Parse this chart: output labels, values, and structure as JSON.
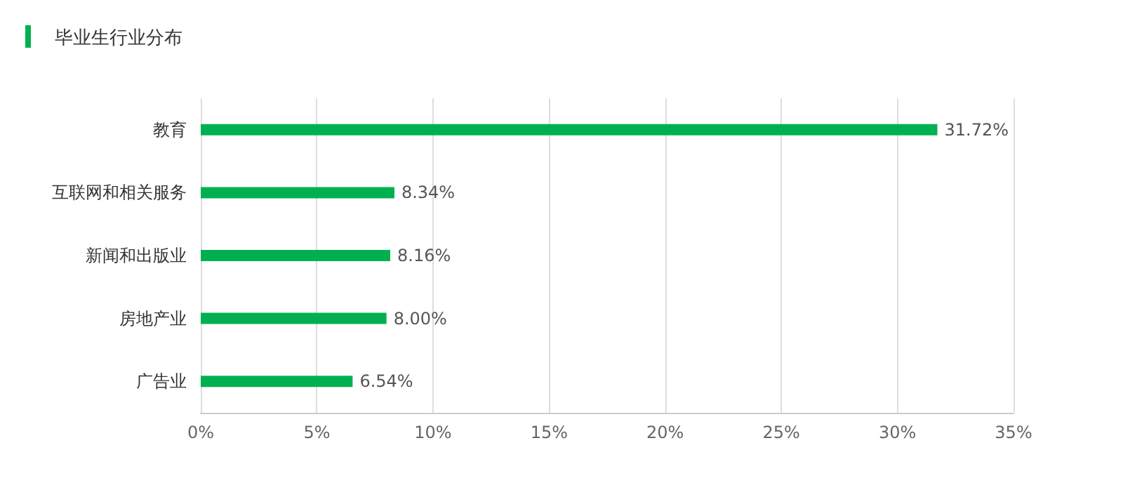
{
  "chart_data": {
    "type": "bar",
    "title": "毕业生行业分布",
    "orientation": "horizontal",
    "categories": [
      "教育",
      "互联网和相关服务",
      "新闻和出版业",
      "房地产业",
      "广告业"
    ],
    "values": [
      31.72,
      8.34,
      8.16,
      8.0,
      6.54
    ],
    "value_labels": [
      "31.72%",
      "8.34%",
      "8.16%",
      "8.00%",
      "6.54%"
    ],
    "color": "#00b050",
    "xlim": [
      0,
      35
    ],
    "xticks": [
      {
        "value": 0,
        "label": "0%"
      },
      {
        "value": 5,
        "label": "5%"
      },
      {
        "value": 10,
        "label": "10%"
      },
      {
        "value": 15,
        "label": "15%"
      },
      {
        "value": 20,
        "label": "20%"
      },
      {
        "value": 25,
        "label": "25%"
      },
      {
        "value": 30,
        "label": "30%"
      },
      {
        "value": 35,
        "label": "35%"
      }
    ],
    "grid": "x"
  }
}
